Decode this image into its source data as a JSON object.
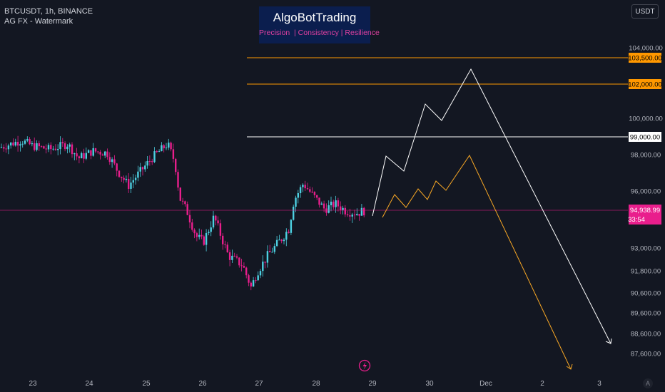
{
  "header": {
    "symbol": "BTCUSDT, 1h, BINANCE",
    "indicator": "AG FX - Watermark",
    "currency": "USDT"
  },
  "brand": {
    "title": "AlgoBotTrading",
    "tagline": "Precision  | Consistency | Resilience"
  },
  "price_axis": {
    "ticks": [
      {
        "value": 104000,
        "label": "104,000.00"
      },
      {
        "value": 100000,
        "label": "100,000.00"
      },
      {
        "value": 98000,
        "label": "98,000.00"
      },
      {
        "value": 96000,
        "label": "96,000.00"
      },
      {
        "value": 93000,
        "label": "93,000.00"
      },
      {
        "value": 91800,
        "label": "91,800.00"
      },
      {
        "value": 90600,
        "label": "90,600.00"
      },
      {
        "value": 89600,
        "label": "89,600.00"
      },
      {
        "value": 88600,
        "label": "88,600.00"
      },
      {
        "value": 87600,
        "label": "87,600.00"
      }
    ],
    "levels": [
      {
        "value": 103500,
        "label": "103,500.00",
        "color": "#ff9800"
      },
      {
        "value": 102000,
        "label": "102,000.00",
        "color": "#ff9800"
      },
      {
        "value": 99000,
        "label": "99,000.00",
        "color": "#ffffff"
      }
    ],
    "current": {
      "value": 94938.99,
      "label": "94,938.99",
      "countdown": "33:54",
      "color": "#e91e8c"
    }
  },
  "time_axis": {
    "labels": [
      "23",
      "24",
      "25",
      "26",
      "27",
      "28",
      "29",
      "30",
      "Dec",
      "2",
      "3"
    ]
  },
  "colors": {
    "up": "#4dd0e1",
    "down": "#e91e8c",
    "white_projection": "#ffffff",
    "orange_projection": "#f9a825"
  },
  "icons": {
    "bolt": "lightning-icon",
    "corner": "A"
  }
}
